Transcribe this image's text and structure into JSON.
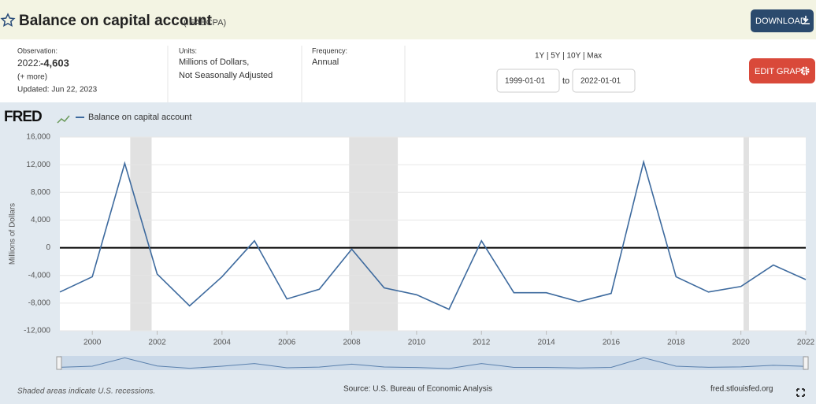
{
  "header": {
    "title": "Balance on capital account",
    "series_id": "(IEABCPA)",
    "download": "DOWNLOAD",
    "edit_graph": "EDIT GRAPH"
  },
  "info": {
    "observation_label": "Observation:",
    "observation_date": "2022:",
    "observation_value": "-4,603",
    "more": "(+ more)",
    "updated": "Updated: Jun 22, 2023",
    "units_label": "Units:",
    "units_line1": "Millions of Dollars,",
    "units_line2": "Not Seasonally Adjusted",
    "frequency_label": "Frequency:",
    "frequency": "Annual",
    "ranges": [
      "1Y",
      "5Y",
      "10Y",
      "Max"
    ],
    "start_date": "1999-01-01",
    "to": "to",
    "end_date": "2022-01-01"
  },
  "chart_data": {
    "type": "line",
    "brand": "FRED",
    "y_label": "Millions of Dollars",
    "x": [
      1999,
      2000,
      2001,
      2002,
      2003,
      2004,
      2005,
      2006,
      2007,
      2008,
      2009,
      2010,
      2011,
      2012,
      2013,
      2014,
      2015,
      2016,
      2017,
      2018,
      2019,
      2020,
      2021,
      2022
    ],
    "series": [
      {
        "name": "Balance on capital account",
        "color": "#3d6a9e",
        "values": [
          -6400,
          -4200,
          12200,
          -3800,
          -8400,
          -4200,
          1000,
          -7400,
          -6000,
          -200,
          -5800,
          -6800,
          -8900,
          1000,
          -6500,
          -6500,
          -7800,
          -6600,
          12400,
          -4200,
          -6400,
          -5600,
          -2500,
          -4603
        ]
      }
    ],
    "xlim": [
      1999,
      2022
    ],
    "xticks": [
      2000,
      2002,
      2004,
      2006,
      2008,
      2010,
      2012,
      2014,
      2016,
      2018,
      2020,
      2022
    ],
    "ylim": [
      -12000,
      16000
    ],
    "yticks": [
      {
        "value": -12000,
        "label": "-12,000"
      },
      {
        "value": -8000,
        "label": "-8,000"
      },
      {
        "value": -4000,
        "label": "-4,000"
      },
      0,
      {
        "value": 4000,
        "label": "4,000"
      },
      {
        "value": 8000,
        "label": "8,000"
      },
      {
        "value": 12000,
        "label": "12,000"
      },
      {
        "value": 16000,
        "label": "16,000"
      }
    ],
    "grid": true,
    "recessions": [
      [
        2001.17,
        2001.83
      ],
      [
        2007.92,
        2009.42
      ],
      [
        2020.08,
        2020.25
      ]
    ],
    "recession_color": "#e1e1e1",
    "recession_note": "Shaded areas indicate U.S. recessions.",
    "source": "Source: U.S. Bureau of Economic Analysis",
    "site": "fred.stlouisfed.org"
  }
}
